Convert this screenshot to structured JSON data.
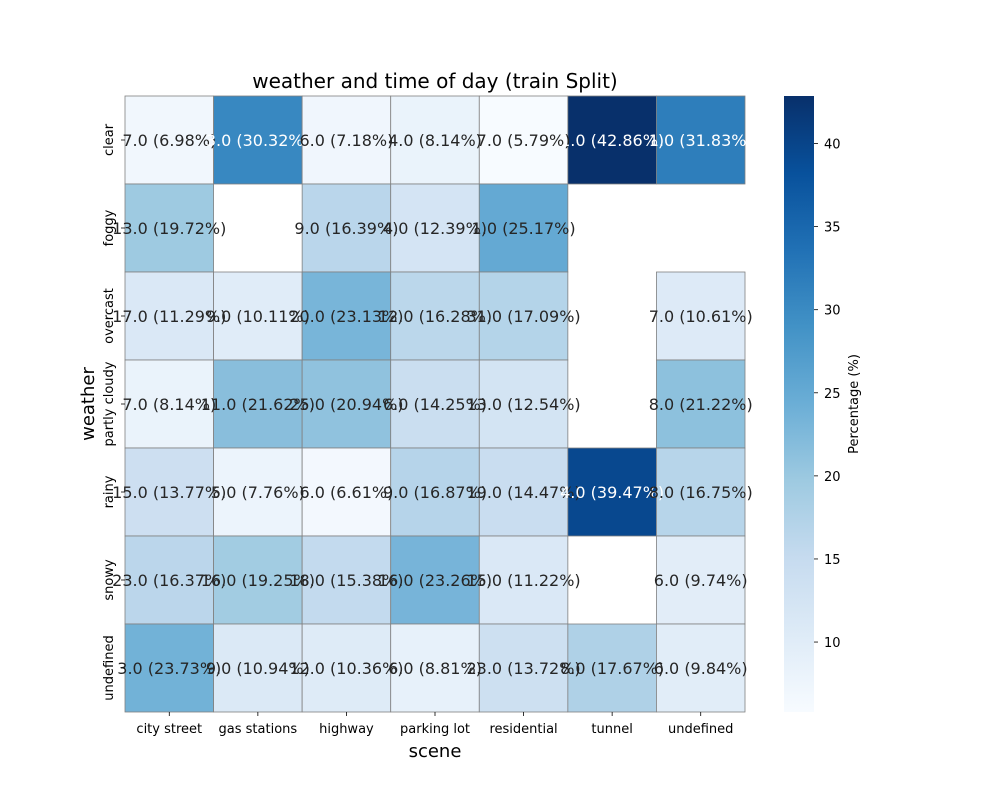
{
  "chart_data": {
    "type": "heatmap",
    "title": "weather and time of day (train Split)",
    "xlabel": "scene",
    "ylabel": "weather",
    "x_categories": [
      "city street",
      "gas stations",
      "highway",
      "parking lot",
      "residential",
      "tunnel",
      "undefined"
    ],
    "y_categories": [
      "clear",
      "foggy",
      "overcast",
      "partly cloudy",
      "rainy",
      "snowy",
      "undefined"
    ],
    "values": [
      [
        6.98,
        30.32,
        7.18,
        8.14,
        5.79,
        42.86,
        31.83
      ],
      [
        19.72,
        null,
        16.39,
        12.39,
        25.17,
        null,
        null
      ],
      [
        11.29,
        10.11,
        23.13,
        16.28,
        17.09,
        null,
        10.61
      ],
      [
        8.14,
        21.62,
        20.94,
        14.25,
        12.54,
        null,
        21.22
      ],
      [
        13.77,
        7.76,
        6.61,
        16.87,
        14.47,
        39.47,
        16.75
      ],
      [
        16.37,
        19.25,
        15.38,
        23.26,
        11.22,
        null,
        9.74
      ],
      [
        23.73,
        10.94,
        10.36,
        8.81,
        13.72,
        17.67,
        9.84
      ]
    ],
    "cell_labels": [
      [
        "7.0 (6.98%)",
        "3.0 (30.32%)",
        "6.0 (7.18%)",
        "4.0 (8.14%)",
        "7.0 (5.79%)",
        "1.0 (42.86%)",
        "1.0 (31.83%)"
      ],
      [
        "13.0 (19.72%)",
        "",
        "9.0 (16.39%)",
        "4.0 (12.39%)",
        "1.0 (25.17%)",
        "",
        ""
      ],
      [
        "17.0 (11.29%)",
        "9.0 (10.11%)",
        "20.0 (23.13%)",
        "12.0 (16.28%)",
        "31.0 (17.09%)",
        "",
        "7.0 (10.61%)"
      ],
      [
        "7.0 (8.14%)",
        "11.0 (21.62%)",
        "25.0 (20.94%)",
        "6.0 (14.25%)",
        "13.0 (12.54%)",
        "",
        "8.0 (21.22%)"
      ],
      [
        "15.0 (13.77%)",
        "5.0 (7.76%)",
        "6.0 (6.61%)",
        "9.0 (16.87%)",
        "19.0 (14.47%)",
        "4.0 (39.47%)",
        "8.0 (16.75%)"
      ],
      [
        "23.0 (16.37%)",
        "16.0 (19.25%)",
        "18.0 (15.38%)",
        "16.0 (23.26%)",
        "15.0 (11.22%)",
        "",
        "6.0 (9.74%)"
      ],
      [
        "3.0 (23.73%)",
        "9.0 (10.94%)",
        "12.0 (10.36%)",
        "6.0 (8.81%)",
        "23.0 (13.72%)",
        "8.0 (17.67%)",
        "6.0 (9.84%)"
      ]
    ],
    "colorbar": {
      "label": "Percentage (%)",
      "range": [
        5.79,
        42.86
      ],
      "ticks": [
        10,
        15,
        20,
        25,
        30,
        35,
        40
      ]
    },
    "colormap": "Blues",
    "grid": true
  }
}
